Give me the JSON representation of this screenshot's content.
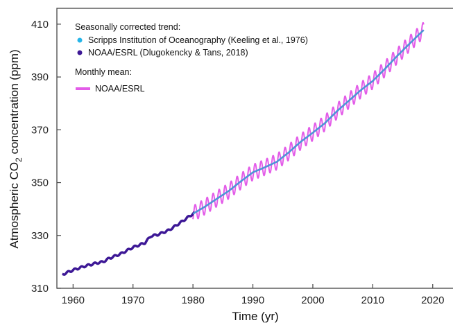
{
  "chart_data": {
    "type": "line",
    "title": "",
    "xlabel": "Time (yr)",
    "ylabel_parts": [
      "Atmospheric CO",
      "2",
      " concentration (ppm)"
    ],
    "xlim": [
      1957.3,
      2023.5
    ],
    "ylim": [
      310,
      416
    ],
    "xticks": [
      1960,
      1970,
      1980,
      1990,
      2000,
      2010,
      2020
    ],
    "yticks": [
      310,
      330,
      350,
      370,
      390,
      410
    ],
    "grid": false,
    "legend": {
      "placement": "top-left",
      "heading1": "Seasonally corrected trend:",
      "heading2": "Monthly mean:",
      "entries": [
        {
          "label": "Scripps Institution of Oceanography (Keeling et al., 1976)",
          "marker": "dot",
          "color": "#26b5e8"
        },
        {
          "label": "NOAA/ESRL (Dlugokencky & Tans, 2018)",
          "marker": "dot",
          "color": "#3d1896"
        },
        {
          "label": "NOAA/ESRL",
          "marker": "line",
          "color": "#e35ce8"
        }
      ]
    },
    "series": [
      {
        "name": "Scripps Institution of Oceanography (Keeling et al., 1976)",
        "color": "#3d1896",
        "x": [
          1958.2,
          1960,
          1962,
          1964,
          1965,
          1966,
          1968,
          1970,
          1972,
          1973,
          1974,
          1976,
          1978,
          1980,
          1980.3
        ],
        "y": [
          315.2,
          316.9,
          318.4,
          319.6,
          320.0,
          321.3,
          323.1,
          325.5,
          327.2,
          329.8,
          330.2,
          332.0,
          335.0,
          338.2,
          338.5
        ]
      },
      {
        "name": "NOAA/ESRL (Dlugokencky & Tans, 2018)",
        "color": "#4e95d6",
        "x": [
          1980,
          1982,
          1984,
          1986,
          1988,
          1990,
          1992,
          1994,
          1996,
          1998,
          2000,
          2002,
          2004,
          2006,
          2008,
          2010,
          2012,
          2014,
          2016,
          2018.5
        ],
        "y": [
          338.2,
          340.9,
          343.9,
          346.9,
          350.5,
          353.9,
          355.8,
          357.9,
          361.5,
          365.5,
          368.9,
          372.5,
          377.0,
          381.0,
          385.0,
          388.5,
          393.0,
          397.8,
          402.3,
          407.8
        ]
      },
      {
        "name": "NOAA/ESRL",
        "color": "#e35ce8",
        "kind": "monthly",
        "x_range": [
          1980,
          2018.5
        ],
        "seasonal_amplitude_ppm": 3.0
      }
    ]
  }
}
